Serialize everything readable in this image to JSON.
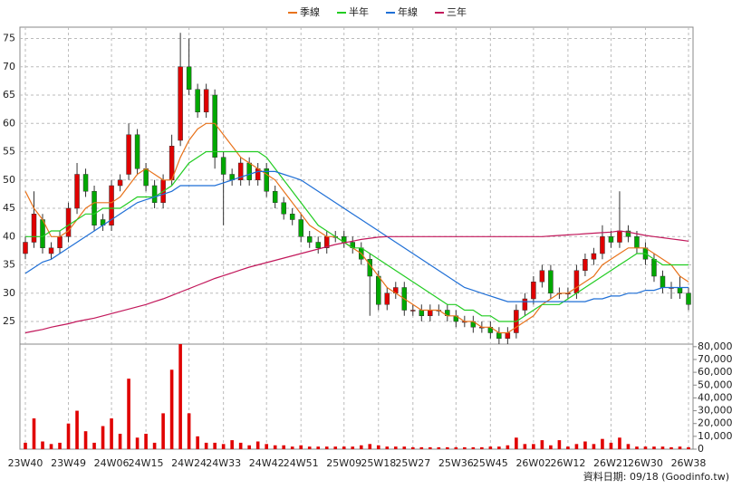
{
  "chart_data": {
    "type": "candlestick",
    "categories": [
      "23W40",
      null,
      null,
      null,
      null,
      "23W49",
      null,
      null,
      null,
      null,
      "24W06",
      null,
      null,
      null,
      "24W15",
      null,
      null,
      null,
      null,
      "24W24",
      null,
      null,
      null,
      "24W33",
      null,
      null,
      null,
      null,
      "24W42",
      null,
      null,
      null,
      "24W51",
      null,
      null,
      null,
      null,
      "25W09",
      null,
      null,
      null,
      "25W18",
      null,
      null,
      null,
      "25W27",
      null,
      null,
      null,
      null,
      "25W36",
      null,
      null,
      null,
      "25W45",
      null,
      null,
      null,
      null,
      "26W02",
      null,
      null,
      null,
      "26W12",
      null,
      null,
      null,
      null,
      "26W21",
      null,
      null,
      null,
      "26W30",
      null,
      null,
      null,
      null,
      "26W38"
    ],
    "open": [
      37,
      39,
      43,
      37,
      38,
      40,
      45,
      51,
      48,
      43,
      42,
      49,
      51,
      58,
      52,
      49,
      46,
      50,
      57,
      70,
      66,
      62,
      65,
      54,
      51,
      50,
      53,
      50,
      52,
      48,
      46,
      44,
      43,
      40,
      39,
      38,
      40,
      40,
      39,
      38,
      36,
      33,
      28,
      30,
      31,
      27,
      27,
      26,
      27,
      27,
      26,
      25,
      25,
      24,
      24,
      23,
      22,
      23,
      27,
      29,
      32,
      34,
      30,
      30,
      30,
      34,
      36,
      37,
      40,
      39,
      41,
      40,
      38,
      36,
      33,
      31,
      31,
      30
    ],
    "high": [
      40,
      48,
      44,
      39,
      41,
      46,
      53,
      52,
      49,
      44,
      50,
      51,
      60,
      59,
      53,
      50,
      51,
      58,
      76,
      75,
      67,
      67,
      66,
      55,
      52,
      54,
      54,
      53,
      53,
      49,
      47,
      45,
      44,
      41,
      40,
      41,
      41,
      41,
      40,
      39,
      37,
      34,
      31,
      32,
      32,
      28,
      28,
      28,
      28,
      28,
      27,
      26,
      26,
      25,
      25,
      24,
      24,
      28,
      30,
      33,
      35,
      35,
      31,
      31,
      35,
      37,
      38,
      42,
      41,
      48,
      42,
      41,
      39,
      37,
      34,
      32,
      33,
      31
    ],
    "low": [
      36,
      38,
      37,
      36,
      37,
      39,
      44,
      47,
      41,
      41,
      41,
      48,
      50,
      51,
      48,
      45,
      45,
      49,
      56,
      65,
      61,
      61,
      52,
      42,
      49,
      49,
      49,
      49,
      47,
      45,
      43,
      42,
      39,
      38,
      37,
      37,
      39,
      38,
      37,
      35,
      26,
      27,
      27,
      29,
      26,
      26,
      25,
      25,
      26,
      25,
      24,
      24,
      23,
      23,
      22,
      21,
      21,
      22,
      26,
      28,
      31,
      29,
      29,
      29,
      29,
      33,
      35,
      36,
      38,
      38,
      39,
      37,
      35,
      32,
      30,
      29,
      29,
      27
    ],
    "close": [
      39,
      44,
      38,
      38,
      40,
      45,
      51,
      48,
      42,
      42,
      49,
      50,
      58,
      52,
      49,
      46,
      50,
      56,
      70,
      66,
      62,
      66,
      54,
      51,
      50,
      53,
      50,
      52,
      48,
      46,
      44,
      43,
      40,
      39,
      38,
      40,
      40,
      39,
      38,
      36,
      33,
      28,
      30,
      31,
      27,
      27,
      26,
      27,
      27,
      26,
      25,
      25,
      24,
      24,
      23,
      22,
      23,
      27,
      29,
      32,
      34,
      30,
      30,
      30,
      34,
      36,
      37,
      40,
      39,
      41,
      40,
      38,
      36,
      33,
      31,
      31,
      30,
      28
    ],
    "up_color": "#e00000",
    "down_color": "#00a800",
    "series": [
      {
        "name": "季線",
        "color": "#e8731c",
        "values": [
          48,
          45,
          43,
          40,
          40,
          41,
          43,
          45,
          46,
          46,
          46,
          47,
          49,
          51,
          52,
          51,
          50,
          50,
          54,
          57,
          59,
          60,
          60,
          58,
          56,
          54,
          53,
          52,
          51,
          50,
          48,
          46,
          44,
          42,
          41,
          40,
          40,
          39,
          38,
          37,
          35,
          33,
          31,
          30,
          29,
          28,
          27,
          27,
          27,
          26,
          26,
          25,
          25,
          24,
          24,
          23,
          23,
          24,
          25,
          26,
          28,
          29,
          30,
          30,
          31,
          32,
          33,
          35,
          36,
          37,
          38,
          38,
          38,
          37,
          36,
          35,
          33,
          32
        ]
      },
      {
        "name": "半年",
        "color": "#22cc22",
        "values": [
          40,
          40,
          40,
          41,
          41,
          42,
          43,
          44,
          44,
          45,
          45,
          45,
          46,
          47,
          47,
          47,
          48,
          49,
          51,
          53,
          54,
          55,
          55,
          55,
          55,
          55,
          55,
          55,
          54,
          52,
          50,
          48,
          46,
          44,
          42,
          41,
          40,
          39,
          38,
          38,
          37,
          36,
          35,
          34,
          33,
          32,
          31,
          30,
          29,
          28,
          28,
          27,
          27,
          26,
          26,
          25,
          25,
          25,
          26,
          27,
          28,
          28,
          28,
          29,
          30,
          31,
          32,
          33,
          34,
          35,
          36,
          37,
          37,
          36,
          35,
          35,
          35,
          35
        ]
      },
      {
        "name": "年線",
        "color": "#1f6fd6",
        "values": [
          33.5,
          34.5,
          35.5,
          36,
          37,
          38,
          39,
          40,
          41,
          42,
          43,
          44,
          45,
          46,
          46.5,
          47,
          47.5,
          48,
          49,
          49,
          49,
          49,
          49,
          49.5,
          50,
          50.5,
          51,
          51.5,
          51.5,
          51.5,
          51,
          50.5,
          50,
          49,
          48,
          47,
          46,
          45,
          44,
          43,
          42,
          41,
          40,
          39,
          38,
          37,
          36,
          35,
          34,
          33,
          32,
          31,
          30.5,
          30,
          29.5,
          29,
          28.5,
          28.5,
          28.5,
          28.5,
          28.5,
          28.5,
          28.5,
          28.5,
          28.5,
          28.5,
          29,
          29,
          29.5,
          29.5,
          30,
          30,
          30.5,
          30.5,
          31,
          31,
          31,
          31
        ]
      },
      {
        "name": "三年",
        "color": "#c2185b",
        "values": [
          23,
          23.3,
          23.6,
          24,
          24.3,
          24.6,
          25,
          25.3,
          25.6,
          26,
          26.4,
          26.8,
          27.2,
          27.6,
          28,
          28.5,
          29,
          29.6,
          30.2,
          30.8,
          31.4,
          32,
          32.6,
          33.1,
          33.6,
          34.1,
          34.6,
          35,
          35.4,
          35.8,
          36.2,
          36.6,
          37,
          37.4,
          37.8,
          38.2,
          38.6,
          38.9,
          39.2,
          39.5,
          39.7,
          39.9,
          40,
          40,
          40,
          40,
          40,
          40,
          40,
          40,
          40,
          40,
          40,
          40,
          40,
          40,
          40,
          40,
          40,
          40,
          40,
          40.1,
          40.2,
          40.3,
          40.4,
          40.5,
          40.6,
          40.7,
          40.8,
          41,
          40.8,
          40.5,
          40.2,
          40,
          39.8,
          39.6,
          39.4,
          39.2
        ]
      }
    ],
    "ylim": [
      21,
      77
    ],
    "yticks": [
      25,
      30,
      35,
      40,
      45,
      50,
      55,
      60,
      65,
      70,
      75
    ],
    "grid": true,
    "volume": {
      "color": "#e00000",
      "values": [
        5000,
        24000,
        6000,
        4000,
        5000,
        20000,
        30000,
        14000,
        5000,
        18000,
        24000,
        12000,
        55000,
        9000,
        12000,
        5000,
        28000,
        62000,
        82000,
        28000,
        10000,
        5000,
        5000,
        4000,
        7000,
        5000,
        3000,
        6000,
        4000,
        3000,
        3000,
        2000,
        3000,
        2000,
        2000,
        2000,
        2000,
        2000,
        2000,
        3000,
        4000,
        3000,
        2000,
        2000,
        2000,
        1500,
        1500,
        1500,
        1500,
        1500,
        1500,
        1500,
        1500,
        1500,
        2000,
        2000,
        3000,
        9000,
        4000,
        4000,
        7000,
        3000,
        7000,
        2000,
        4000,
        6000,
        4000,
        8000,
        5000,
        9000,
        4000,
        2000,
        2000,
        2000,
        2000,
        1500,
        2000,
        1500
      ],
      "ylim": [
        0,
        82000
      ],
      "yticks": [
        0,
        {
          "value": 10000,
          "label": "10,000"
        },
        {
          "value": 20000,
          "label": "20,000"
        },
        {
          "value": 30000,
          "label": "30,000"
        },
        {
          "value": 40000,
          "label": "40,000"
        },
        {
          "value": 50000,
          "label": "50,000"
        },
        {
          "value": 60000,
          "label": "60,000"
        },
        {
          "value": 70000,
          "label": "70,000"
        },
        {
          "value": 80000,
          "label": "80,000"
        }
      ]
    },
    "footer": "資料日期: 09/18 (Goodinfo.tw)"
  }
}
